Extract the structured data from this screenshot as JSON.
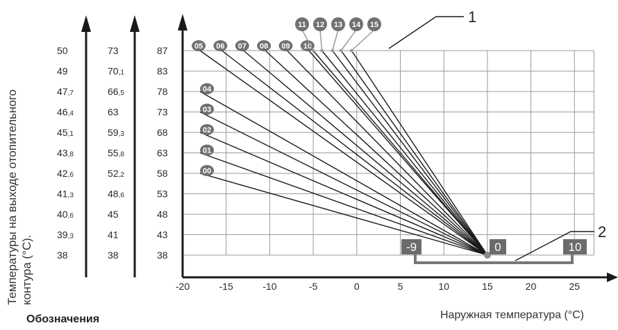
{
  "chart_data": {
    "type": "line",
    "ylabel": "Температуры на выходе отопительного контура (°С).",
    "xlabel": "Наружная температура (°С)",
    "legend_heading": "Обозначения",
    "x_ticks": [
      "-20",
      "-15",
      "-10",
      "-5",
      "0",
      "5",
      "10",
      "15",
      "20",
      "25"
    ],
    "x_tick_values": [
      -20,
      -15,
      -10,
      -5,
      0,
      5,
      10,
      15,
      20,
      25
    ],
    "xlim": [
      -20,
      27
    ],
    "ylim": [
      38,
      87
    ],
    "y_ticks": [
      "38",
      "43",
      "48",
      "53",
      "58",
      "63",
      "68",
      "73",
      "78",
      "83",
      "87"
    ],
    "y_tick_values": [
      38,
      43,
      48,
      53,
      58,
      63,
      68,
      73,
      78,
      83,
      87
    ],
    "scale_2": [
      "38",
      "41",
      "45",
      "48,6",
      "52,2",
      "55,8",
      "59,3",
      "63",
      "66,5",
      "70,1",
      "73"
    ],
    "scale_3": [
      "38",
      "39,3",
      "40,6",
      "41,3",
      "42,6",
      "43,8",
      "45,1",
      "46,4",
      "47,7",
      "49",
      "50"
    ],
    "convergence_point": [
      15,
      38
    ],
    "series": [
      {
        "name": "00",
        "x": [
          -18,
          15
        ],
        "y": [
          58,
          38
        ]
      },
      {
        "name": "01",
        "x": [
          -18,
          15
        ],
        "y": [
          63,
          38
        ]
      },
      {
        "name": "02",
        "x": [
          -18,
          15
        ],
        "y": [
          68,
          38
        ]
      },
      {
        "name": "03",
        "x": [
          -18,
          15
        ],
        "y": [
          73,
          38
        ]
      },
      {
        "name": "04",
        "x": [
          -18,
          15
        ],
        "y": [
          78,
          38
        ]
      },
      {
        "name": "05",
        "x": [
          -18,
          15
        ],
        "y": [
          87,
          38
        ]
      },
      {
        "name": "06",
        "x": [
          -15.5,
          15
        ],
        "y": [
          87,
          38
        ]
      },
      {
        "name": "07",
        "x": [
          -13,
          15
        ],
        "y": [
          87,
          38
        ]
      },
      {
        "name": "08",
        "x": [
          -10.5,
          15
        ],
        "y": [
          87,
          38
        ]
      },
      {
        "name": "09",
        "x": [
          -8,
          15
        ],
        "y": [
          87,
          38
        ]
      },
      {
        "name": "10",
        "x": [
          -5.5,
          15
        ],
        "y": [
          87,
          38
        ]
      },
      {
        "name": "11",
        "x": [
          -5,
          15
        ],
        "y": [
          87,
          38
        ]
      },
      {
        "name": "12",
        "x": [
          -4,
          15
        ],
        "y": [
          87,
          38
        ]
      },
      {
        "name": "13",
        "x": [
          -2.8,
          15
        ],
        "y": [
          87,
          38
        ]
      },
      {
        "name": "14",
        "x": [
          -1.8,
          15
        ],
        "y": [
          87,
          38
        ]
      },
      {
        "name": "15",
        "x": [
          -0.6,
          15
        ],
        "y": [
          87,
          38
        ]
      }
    ],
    "offset_scale": {
      "min_label": "-9",
      "zero_label": "0",
      "max_label": "10"
    },
    "callouts": [
      "1",
      "2"
    ],
    "grid": true
  },
  "colors": {
    "line": "#1a1a1a",
    "marker": "#707070",
    "marker_light": "#9a9a9a",
    "grid": "#9a9a9a",
    "text": "#2a2a2a",
    "label_box": "#6b6b6b"
  }
}
